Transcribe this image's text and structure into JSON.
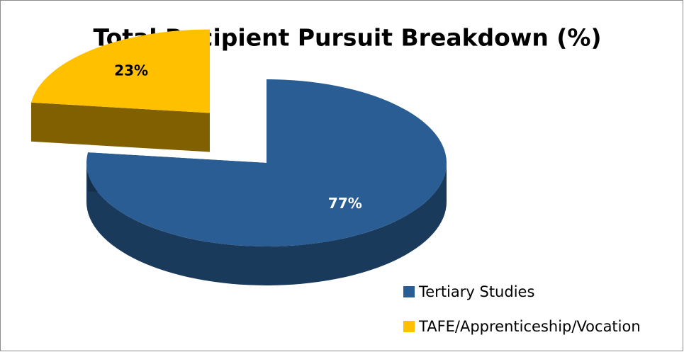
{
  "chart_data": {
    "type": "pie3d",
    "title": "Total Recipient Pursuit Breakdown (%)",
    "categories": [
      "Tertiary Studies",
      "TAFE/Apprenticeship/Vocation"
    ],
    "values": [
      77,
      23
    ],
    "value_labels": [
      "77%",
      "23%"
    ],
    "colors": [
      "#2a5d93",
      "#ffc000"
    ],
    "legend": "bottom-right"
  }
}
